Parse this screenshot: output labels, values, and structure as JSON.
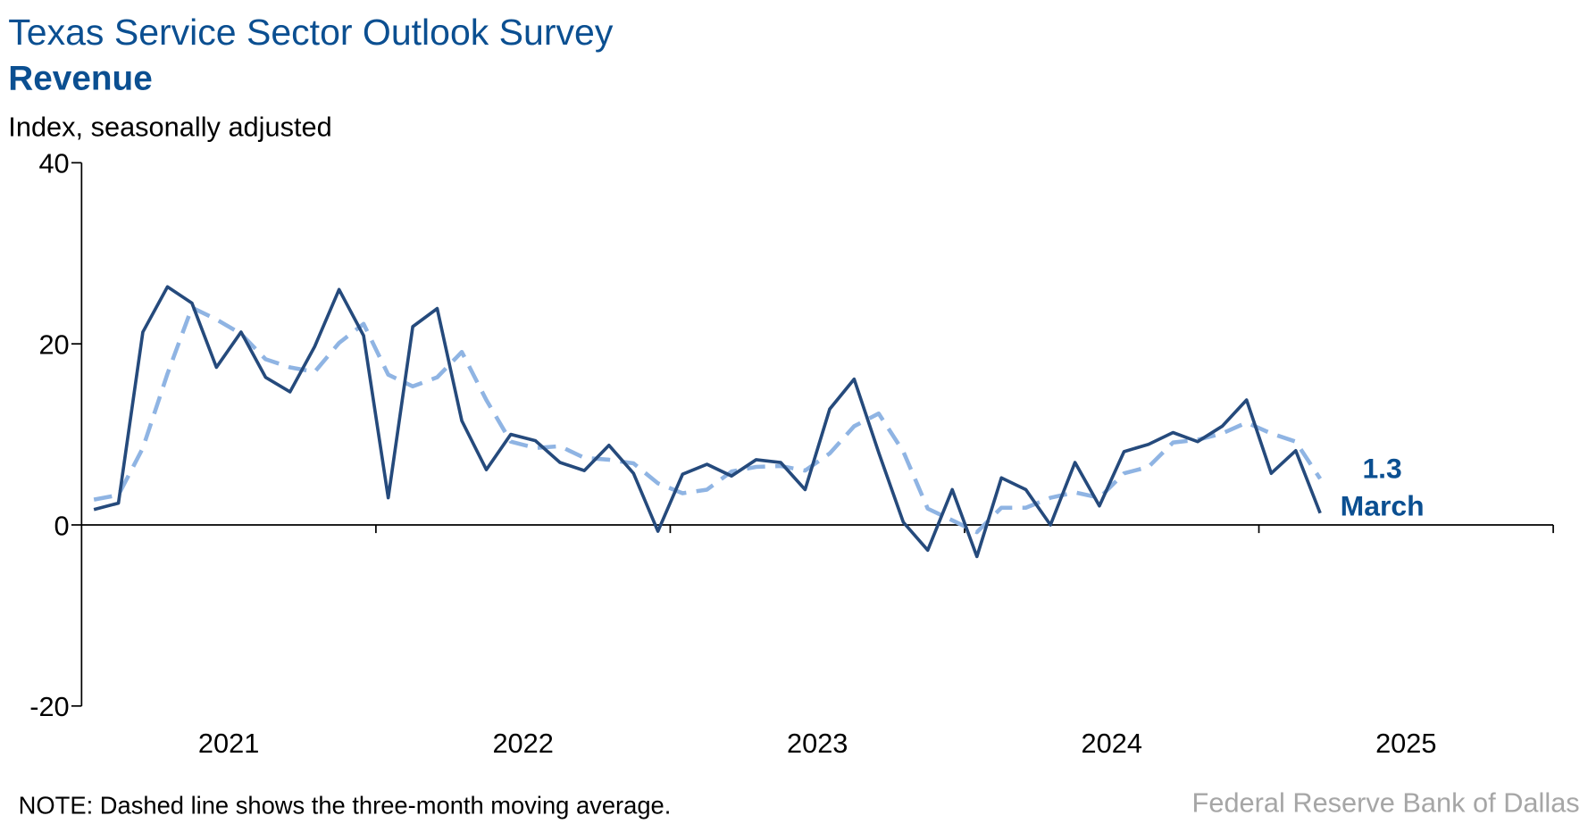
{
  "chart_data": {
    "type": "line",
    "title": "Texas Service Sector Outlook Survey",
    "subtitle": "Revenue",
    "y_label": "Index, seasonally adjusted",
    "note": "NOTE: Dashed line shows the three-month moving average.",
    "source": "Federal Reserve Bank of Dallas",
    "annotation": "March",
    "x": [
      2021.042,
      2021.125,
      2021.208,
      2021.292,
      2021.375,
      2021.458,
      2021.542,
      2021.625,
      2021.708,
      2021.792,
      2021.875,
      2021.958,
      2022.042,
      2022.125,
      2022.208,
      2022.292,
      2022.375,
      2022.458,
      2022.542,
      2022.625,
      2022.708,
      2022.792,
      2022.875,
      2022.958,
      2023.042,
      2023.125,
      2023.208,
      2023.292,
      2023.375,
      2023.458,
      2023.542,
      2023.625,
      2023.708,
      2023.792,
      2023.875,
      2023.958,
      2024.042,
      2024.125,
      2024.208,
      2024.292,
      2024.375,
      2024.458,
      2024.542,
      2024.625,
      2024.708,
      2024.792,
      2024.875,
      2024.958,
      2025.042,
      2025.125,
      2025.208
    ],
    "series": [
      {
        "color": "#254a7c",
        "style": "solid",
        "values": [
          1.7,
          2.4,
          21.3,
          26.3,
          24.5,
          17.4,
          21.3,
          16.3,
          14.7,
          19.7,
          26,
          20.9,
          3,
          21.9,
          23.9,
          11.5,
          6.1,
          10,
          9.3,
          6.9,
          6,
          8.8,
          5.7,
          -0.7,
          5.6,
          6.7,
          5.4,
          7.2,
          6.9,
          3.9,
          12.8,
          16.1,
          8,
          0.3,
          -2.8,
          3.9,
          -3.5,
          5.2,
          3.9,
          0,
          6.9,
          2.1,
          8.1,
          8.9,
          10.2,
          9.2,
          10.9,
          13.8,
          5.7,
          8.2,
          1.3
        ]
      },
      {
        "color": "#8fb4e3",
        "style": "dashed",
        "values": [
          2.8,
          3.3,
          8.5,
          16.7,
          24,
          22.7,
          21.1,
          18.3,
          17.4,
          16.9,
          20.1,
          22.2,
          16.6,
          15.3,
          16.3,
          19.1,
          13.8,
          9.2,
          8.5,
          8.7,
          7.4,
          7.2,
          6.8,
          4.6,
          3.5,
          3.9,
          5.9,
          6.4,
          6.5,
          6,
          7.9,
          10.9,
          12.3,
          8.1,
          1.8,
          0.5,
          -0.8,
          1.9,
          1.9,
          3,
          3.6,
          3,
          5.7,
          6.4,
          9.1,
          9.4,
          10.1,
          11.3,
          10.1,
          9.2,
          5.1
        ]
      }
    ],
    "xlim": [
      2021,
      2026
    ],
    "xticks": [
      {
        "value": 2021.5,
        "label": "2021"
      },
      {
        "value": 2022.5,
        "label": "2022"
      },
      {
        "value": 2023.5,
        "label": "2023"
      },
      {
        "value": 2024.5,
        "label": "2024"
      },
      {
        "value": 2025.5,
        "label": "2025"
      }
    ],
    "xtick_marks": [
      2022,
      2023,
      2024,
      2025,
      2026
    ],
    "ylim": [
      -20,
      40
    ],
    "yticks": [
      -20,
      0,
      20,
      40
    ],
    "grid": false
  }
}
